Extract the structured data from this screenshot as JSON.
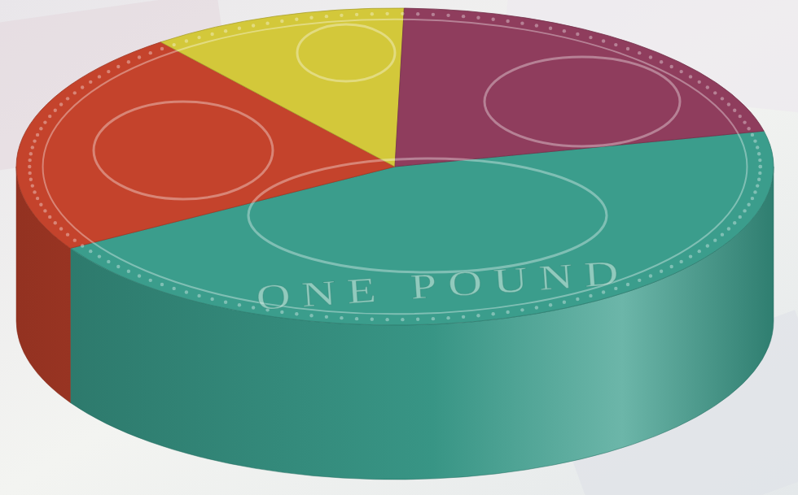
{
  "chart_data": {
    "type": "pie",
    "values": [
      45,
      23,
      11,
      21
    ],
    "colors": [
      "#3b9d8c",
      "#c4432c",
      "#d3c83a",
      "#8f3d5d"
    ],
    "annotations": [
      "ONE POUND"
    ]
  }
}
